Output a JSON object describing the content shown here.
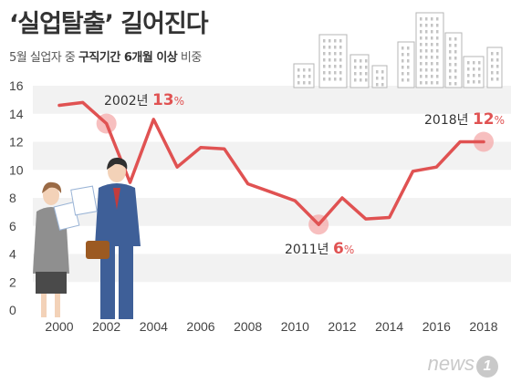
{
  "title": "‘실업탈출’ 길어진다",
  "subtitle": {
    "part1": "5월 실업자 중 ",
    "bold": "구직기간 6개월 이상",
    "part2": " 비중"
  },
  "brand": {
    "word": "news",
    "mark": "1"
  },
  "colors": {
    "line": "#e05252",
    "highlight": "#f4aaaa",
    "label_accent": "#e05252",
    "text": "#333333",
    "band": "#f2f2f2"
  },
  "chart_data": {
    "type": "line",
    "x": [
      2000,
      2001,
      2002,
      2003,
      2004,
      2005,
      2006,
      2007,
      2008,
      2009,
      2010,
      2011,
      2012,
      2013,
      2014,
      2015,
      2016,
      2017,
      2018
    ],
    "values": [
      14.6,
      14.8,
      13.3,
      9.1,
      13.6,
      10.2,
      11.6,
      11.5,
      9.0,
      8.4,
      7.8,
      6.1,
      8.0,
      6.5,
      6.6,
      9.9,
      10.2,
      12.0,
      12.0
    ],
    "ylim": [
      0,
      16
    ],
    "yticks": [
      "0",
      "2",
      "4",
      "6",
      "8",
      "10",
      "12",
      "14",
      "16"
    ],
    "xticks": [
      "2000",
      "2002",
      "2004",
      "2006",
      "2008",
      "2010",
      "2012",
      "2014",
      "2016",
      "2018"
    ],
    "grid": "alternating-horizontal-bands",
    "annotations": [
      {
        "x": 2002,
        "y": 13.3,
        "year_label": "2002년",
        "value_label": "13",
        "unit": "%"
      },
      {
        "x": 2011,
        "y": 6.1,
        "year_label": "2011년",
        "value_label": "6",
        "unit": "%"
      },
      {
        "x": 2018,
        "y": 12.0,
        "year_label": "2018년",
        "value_label": "12",
        "unit": "%"
      }
    ]
  }
}
